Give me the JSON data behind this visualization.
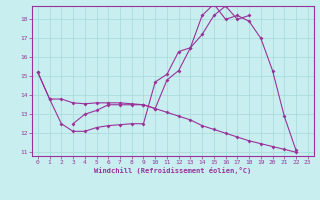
{
  "xlabel": "Windchill (Refroidissement éolien,°C)",
  "bg_color": "#c8eef0",
  "grid_color": "#a8d8d8",
  "line_color": "#993399",
  "xlim": [
    -0.5,
    23.5
  ],
  "ylim": [
    10.8,
    18.7
  ],
  "yticks": [
    11,
    12,
    13,
    14,
    15,
    16,
    17,
    18
  ],
  "xticks": [
    0,
    1,
    2,
    3,
    4,
    5,
    6,
    7,
    8,
    9,
    10,
    11,
    12,
    13,
    14,
    15,
    16,
    17,
    18,
    19,
    20,
    21,
    22,
    23
  ],
  "line1_y": [
    15.2,
    13.8,
    12.5,
    12.1,
    12.1,
    12.3,
    12.4,
    12.45,
    12.5,
    12.5,
    14.7,
    15.1,
    16.3,
    16.5,
    18.2,
    18.8,
    18.0,
    18.2,
    17.9,
    17.0,
    15.3,
    12.9,
    11.1,
    null
  ],
  "line2_y": [
    null,
    null,
    null,
    12.5,
    13.0,
    13.2,
    13.5,
    13.5,
    13.5,
    13.5,
    13.3,
    14.8,
    15.3,
    16.5,
    17.2,
    18.2,
    18.7,
    18.0,
    18.2,
    null,
    null,
    null,
    null,
    null
  ],
  "line3_y": [
    15.2,
    13.8,
    13.8,
    13.6,
    13.55,
    13.6,
    13.6,
    13.6,
    13.55,
    13.5,
    13.3,
    13.1,
    12.9,
    12.7,
    12.4,
    12.2,
    12.0,
    11.8,
    11.6,
    11.45,
    11.3,
    11.15,
    11.0,
    null
  ]
}
